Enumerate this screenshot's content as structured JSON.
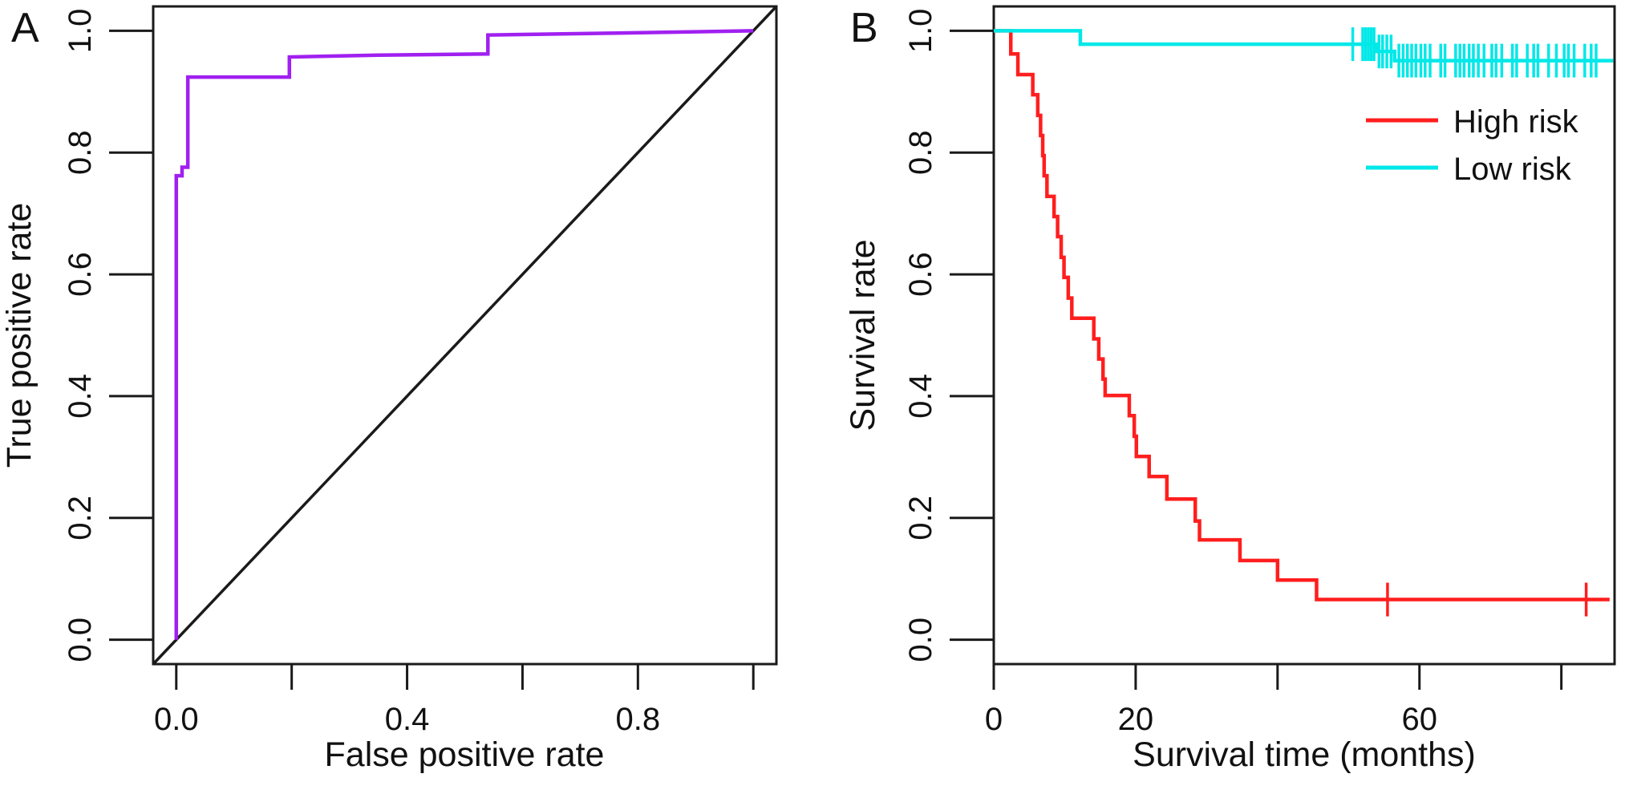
{
  "figure_title": "",
  "chart_data": [
    {
      "type": "line",
      "panel_label": "A",
      "title": "",
      "xlabel": "False positive rate",
      "ylabel": "True positive rate",
      "xlim": [
        -0.04,
        1.04
      ],
      "ylim": [
        -0.04,
        1.04
      ],
      "grid": false,
      "x_ticks": [
        0.0,
        0.2,
        0.4,
        0.6,
        0.8,
        1.0
      ],
      "x_tick_labels": [
        "0.0",
        "",
        "0.4",
        "",
        "0.8",
        ""
      ],
      "y_ticks": [
        1.0,
        0.8,
        0.6,
        0.4,
        0.2,
        0.0
      ],
      "y_tick_labels": [
        "1.0",
        "0.8",
        "0.6",
        "0.4",
        "0.2",
        "0.0"
      ],
      "series": [
        {
          "name": "chance-diagonal",
          "color": "#1a1a1a",
          "width": 3.5,
          "x": [
            -0.04,
            1.04
          ],
          "y": [
            -0.04,
            1.04
          ]
        },
        {
          "name": "ROC curve",
          "color": "#A020F0",
          "width": 4.5,
          "x": [
            0,
            0,
            0.01,
            0.01,
            0.02,
            0.02,
            0.196,
            0.196,
            0.35,
            0.54,
            0.54,
            0.75,
            1.0
          ],
          "y": [
            0,
            0.762,
            0.762,
            0.776,
            0.776,
            0.924,
            0.924,
            0.957,
            0.96,
            0.962,
            0.993,
            0.996,
            1.0
          ]
        }
      ]
    },
    {
      "type": "line",
      "panel_label": "B",
      "title": "",
      "xlabel": "Survival time (months)",
      "ylabel": "Survival rate",
      "xlim": [
        0,
        87.5
      ],
      "ylim": [
        -0.04,
        1.04
      ],
      "grid": false,
      "x_ticks": [
        0,
        20,
        40,
        60,
        80
      ],
      "x_tick_labels": [
        "0",
        "20",
        "",
        "60",
        ""
      ],
      "y_ticks": [
        1.0,
        0.8,
        0.6,
        0.4,
        0.2,
        0.0
      ],
      "y_tick_labels": [
        "1.0",
        "0.8",
        "0.6",
        "0.4",
        "0.2",
        "0.0"
      ],
      "legend": {
        "position": "top-right",
        "entries": [
          {
            "label": "High risk",
            "color": "#FF1E1E"
          },
          {
            "label": "Low risk",
            "color": "#00E8E8"
          }
        ]
      },
      "km_series": [
        {
          "name": "High risk",
          "color": "#FF1E1E",
          "width": 4.5,
          "start": [
            0,
            1.0
          ],
          "drops": [
            [
              2.4,
              0.962
            ],
            [
              3.4,
              0.928
            ],
            [
              5.5,
              0.895
            ],
            [
              6.2,
              0.861
            ],
            [
              6.6,
              0.828
            ],
            [
              6.9,
              0.795
            ],
            [
              7.1,
              0.762
            ],
            [
              7.5,
              0.728
            ],
            [
              8.5,
              0.695
            ],
            [
              9.0,
              0.662
            ],
            [
              9.5,
              0.628
            ],
            [
              9.9,
              0.595
            ],
            [
              10.5,
              0.561
            ],
            [
              11.0,
              0.528
            ],
            [
              14.1,
              0.494
            ],
            [
              14.8,
              0.461
            ],
            [
              15.4,
              0.428
            ],
            [
              15.7,
              0.401
            ],
            [
              19.1,
              0.368
            ],
            [
              19.8,
              0.334
            ],
            [
              20.1,
              0.301
            ],
            [
              21.9,
              0.268
            ],
            [
              24.4,
              0.231
            ],
            [
              28.4,
              0.195
            ],
            [
              29.0,
              0.164
            ],
            [
              34.7,
              0.13
            ],
            [
              40.0,
              0.098
            ],
            [
              45.5,
              0.066
            ]
          ],
          "end_time": 86.8,
          "censor_times": [
            55.5,
            83.5
          ]
        },
        {
          "name": "Low risk",
          "color": "#00E8E8",
          "width": 4.5,
          "start": [
            0,
            1.0
          ],
          "drops": [
            [
              12.2,
              0.978
            ],
            [
              54.0,
              0.966
            ],
            [
              56.5,
              0.951
            ]
          ],
          "end_time": 87.3,
          "censor_times": [
            50.6,
            52.0,
            52.4,
            52.8,
            53.2,
            53.6,
            54.3,
            54.8,
            55.4,
            56.0,
            57.1,
            57.7,
            58.3,
            58.9,
            59.5,
            60.2,
            60.8,
            61.5,
            63.0,
            63.6,
            65.1,
            65.7,
            66.3,
            67.0,
            67.6,
            68.3,
            69.1,
            70.2,
            70.8,
            71.6,
            73.1,
            73.7,
            75.2,
            76.1,
            76.7,
            78.2,
            79.3,
            80.4,
            81.0,
            81.8,
            83.3,
            84.2,
            84.9
          ]
        }
      ]
    }
  ]
}
